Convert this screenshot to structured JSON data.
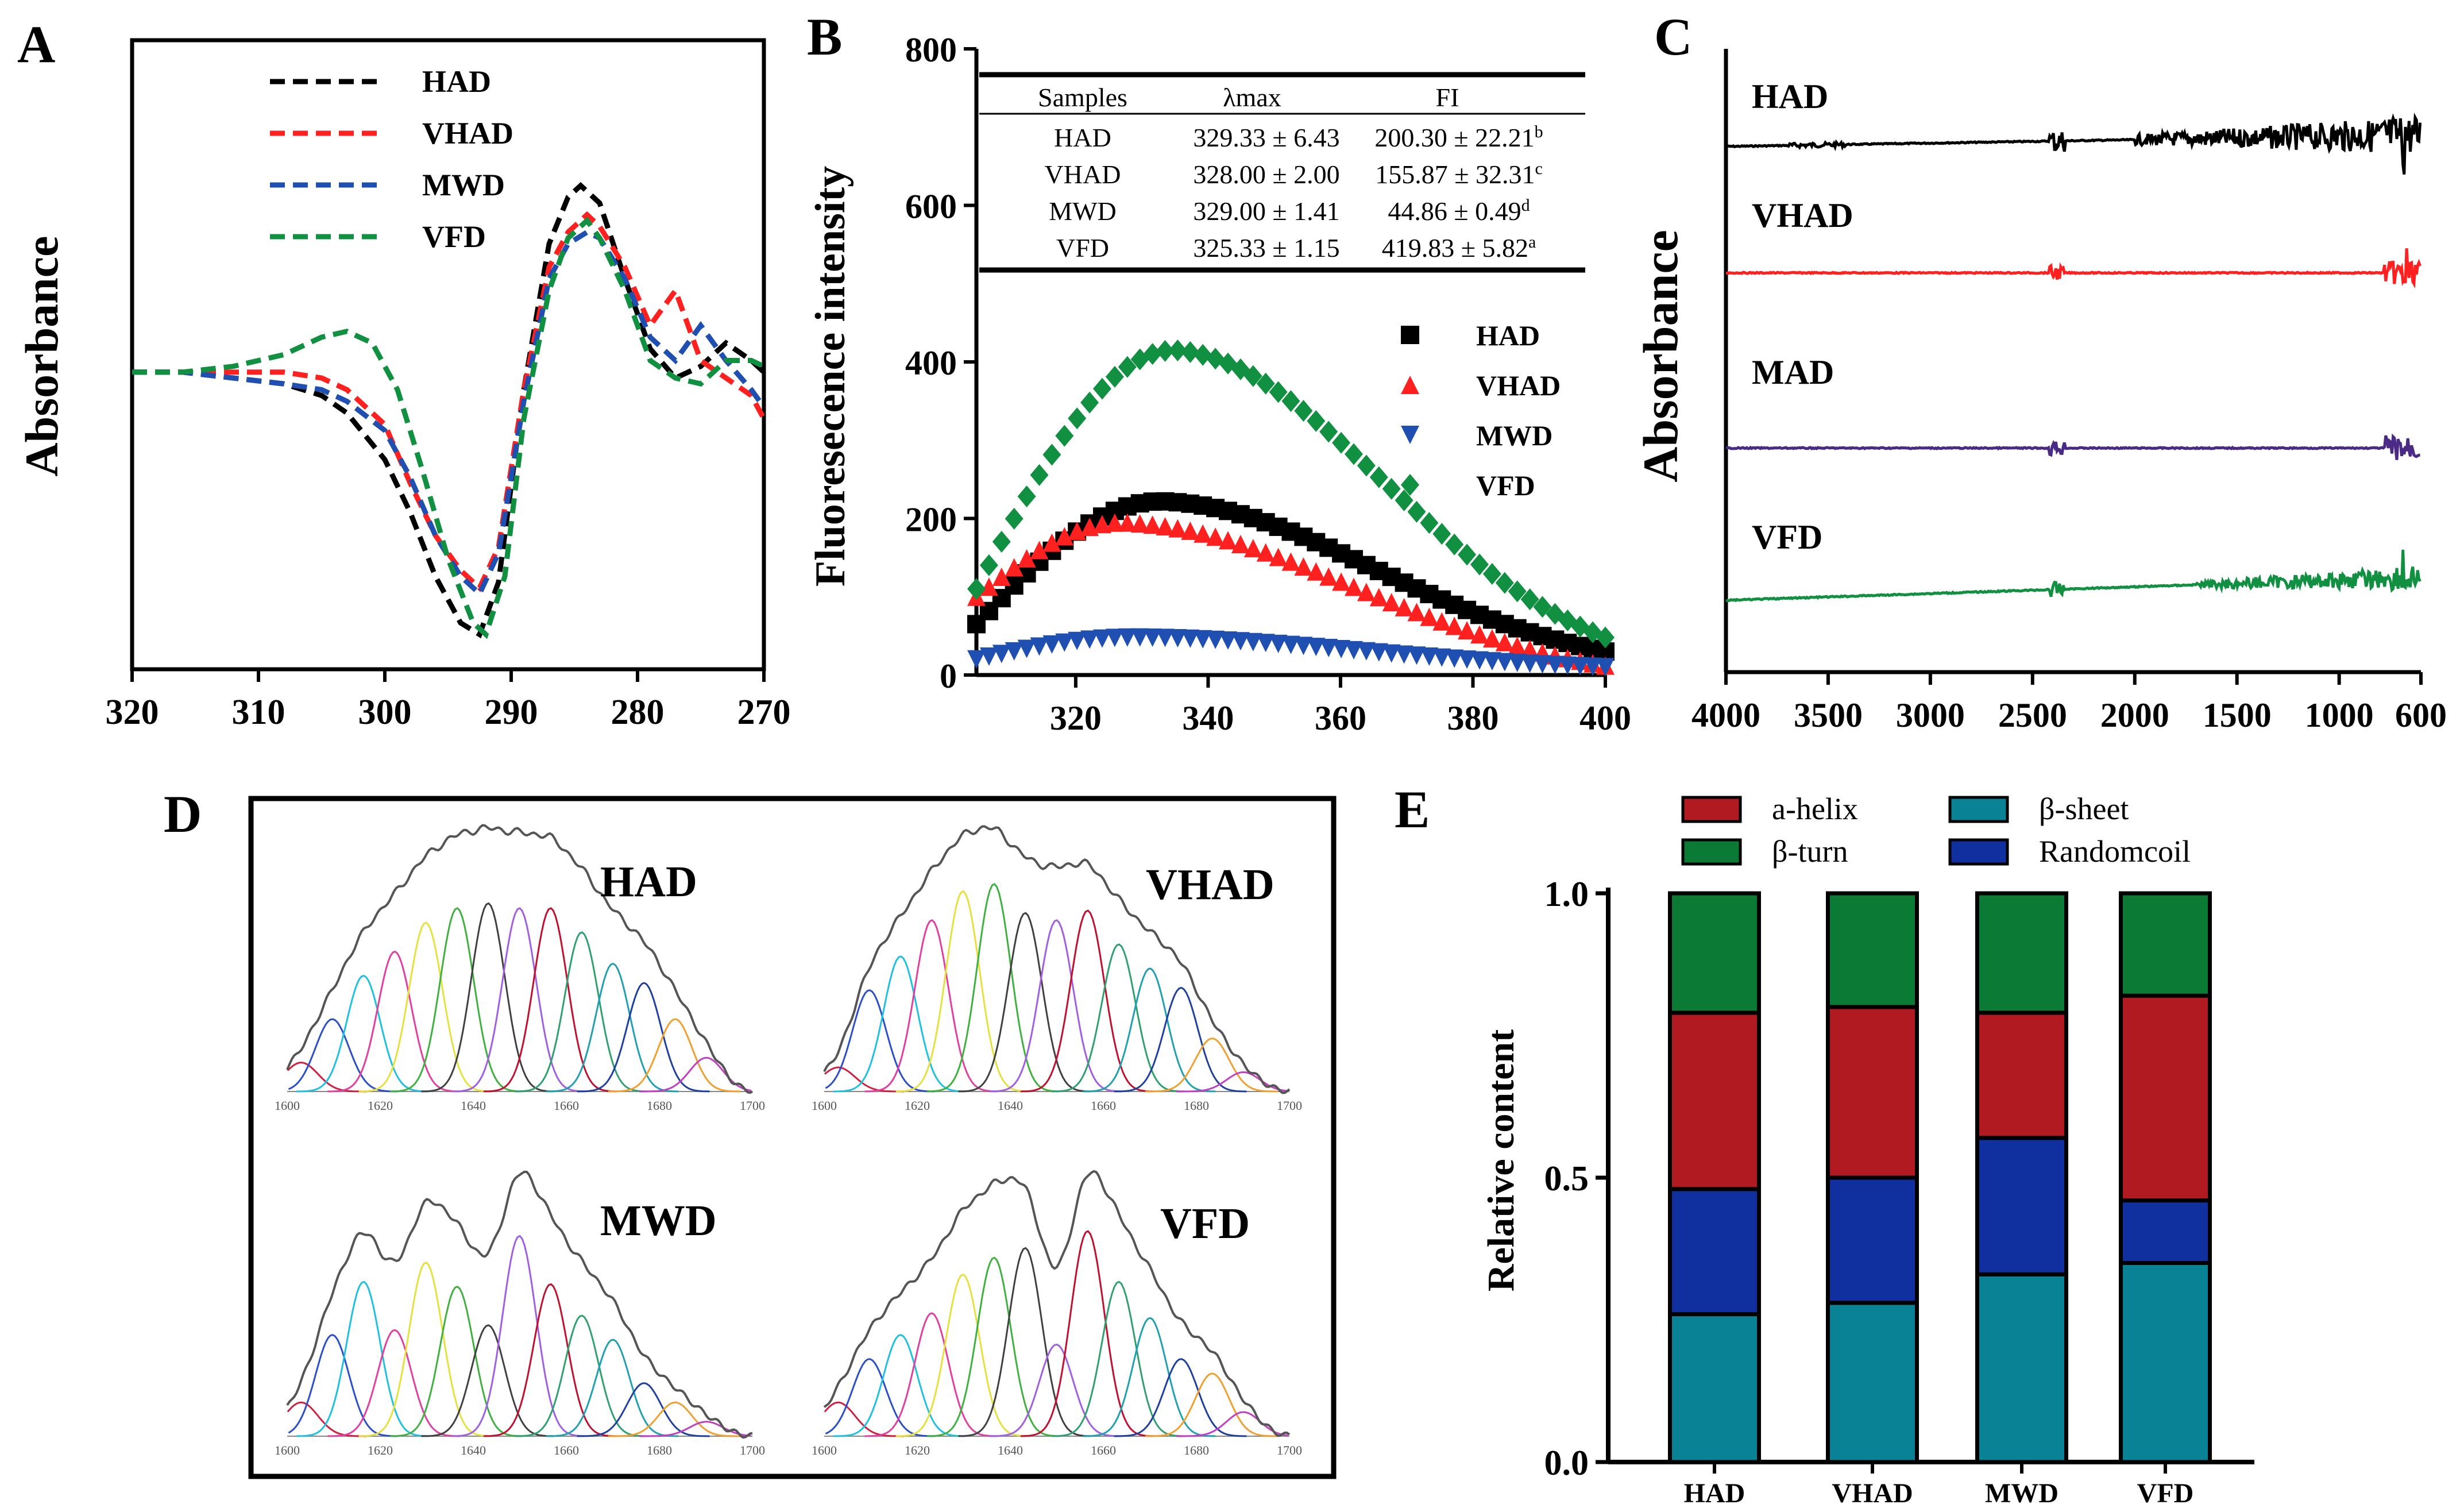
{
  "figure": {
    "panel_labels": [
      "A",
      "B",
      "C",
      "D",
      "E"
    ]
  },
  "colors": {
    "HAD": "#000000",
    "VHAD": "#ff2020",
    "MWD": "#1f4fb0",
    "VFD": "#109040",
    "MAD_ftir": "#4b2a86",
    "alpha_helix": "#b01a20",
    "beta_turn": "#0a7a34",
    "beta_sheet": "#0a8296",
    "random_coil": "#1030a0"
  },
  "chart_data": [
    {
      "panel": "A",
      "type": "line",
      "ylabel": "Absorbance",
      "xlabel": "",
      "x_ticks": [
        "320",
        "310",
        "300",
        "290",
        "280",
        "270"
      ],
      "xlim": [
        320,
        270
      ],
      "ylim": [
        0,
        1
      ],
      "legend": [
        "HAD",
        "VHAD",
        "MWD",
        "VFD"
      ],
      "legend_position": "top-left",
      "series": [
        {
          "name": "HAD",
          "x": [
            320,
            316,
            312,
            308,
            305,
            303,
            300,
            298,
            296,
            294,
            292.5,
            291,
            289,
            287,
            285.5,
            284.5,
            283,
            281,
            279,
            277,
            275,
            273,
            271,
            270
          ],
          "y": [
            0.48,
            0.48,
            0.47,
            0.46,
            0.44,
            0.41,
            0.33,
            0.24,
            0.13,
            0.05,
            0.03,
            0.12,
            0.45,
            0.7,
            0.78,
            0.8,
            0.77,
            0.64,
            0.52,
            0.47,
            0.49,
            0.53,
            0.5,
            0.48
          ]
        },
        {
          "name": "VHAD",
          "x": [
            320,
            316,
            312,
            308,
            305,
            303,
            300,
            298,
            296,
            294,
            292.5,
            291,
            289,
            287,
            285.5,
            284,
            283,
            281,
            279,
            277,
            275,
            273,
            271,
            270
          ],
          "y": [
            0.48,
            0.48,
            0.48,
            0.48,
            0.47,
            0.45,
            0.39,
            0.29,
            0.2,
            0.14,
            0.11,
            0.18,
            0.45,
            0.66,
            0.72,
            0.75,
            0.73,
            0.66,
            0.56,
            0.62,
            0.5,
            0.47,
            0.44,
            0.4
          ]
        },
        {
          "name": "MWD",
          "x": [
            320,
            316,
            312,
            308,
            305,
            303,
            300,
            298,
            296,
            294,
            292.5,
            291,
            289,
            287,
            285.5,
            284,
            283,
            281,
            279,
            277,
            275,
            273,
            271,
            270
          ],
          "y": [
            0.48,
            0.48,
            0.47,
            0.46,
            0.45,
            0.43,
            0.38,
            0.3,
            0.2,
            0.13,
            0.1,
            0.17,
            0.43,
            0.64,
            0.7,
            0.72,
            0.71,
            0.64,
            0.54,
            0.5,
            0.56,
            0.5,
            0.45,
            0.42
          ]
        },
        {
          "name": "VFD",
          "x": [
            320,
            316,
            312,
            308,
            305,
            303,
            301,
            299,
            297,
            295,
            293,
            292,
            290.5,
            289,
            287,
            285.5,
            284,
            283,
            281,
            279,
            277,
            275,
            273,
            271,
            270
          ],
          "y": [
            0.48,
            0.48,
            0.49,
            0.51,
            0.54,
            0.55,
            0.53,
            0.45,
            0.31,
            0.16,
            0.05,
            0.03,
            0.13,
            0.4,
            0.62,
            0.71,
            0.74,
            0.71,
            0.62,
            0.5,
            0.47,
            0.46,
            0.5,
            0.5,
            0.49
          ]
        }
      ]
    },
    {
      "panel": "B",
      "type": "scatter",
      "ylabel": "Fluoresecence intensity",
      "xlabel": "",
      "xlim": [
        305,
        400
      ],
      "ylim": [
        0,
        800
      ],
      "x_ticks": [
        320,
        340,
        360,
        380,
        400
      ],
      "y_ticks": [
        0,
        200,
        400,
        600,
        800
      ],
      "legend": [
        "HAD",
        "VHAD",
        "MWD",
        "VFD"
      ],
      "legend_position": "middle-right",
      "series": [
        {
          "name": "HAD",
          "marker": "square",
          "peak_x": 333,
          "peak": 222,
          "start": 65,
          "end": 30
        },
        {
          "name": "VHAD",
          "marker": "triangle-up",
          "peak_x": 327,
          "peak": 195,
          "start": 100,
          "end": 12
        },
        {
          "name": "MWD",
          "marker": "triangle-down",
          "peak_x": 329,
          "peak": 48,
          "start": 20,
          "end": 10
        },
        {
          "name": "VFD",
          "marker": "diamond",
          "peak_x": 335,
          "peak": 415,
          "start": 110,
          "end": 48
        }
      ],
      "table": {
        "headers": [
          "Samples",
          "λmax",
          "FI"
        ],
        "rows": [
          [
            "HAD",
            "329.33 ± 6.43",
            "200.30 ± 22.21",
            "b"
          ],
          [
            "VHAD",
            "328.00 ± 2.00",
            "155.87 ± 32.31",
            "c"
          ],
          [
            "MWD",
            "329.00 ± 1.41",
            "44.86 ± 0.49",
            "d"
          ],
          [
            "VFD",
            "325.33 ± 1.15",
            "419.83 ± 5.82",
            "a"
          ]
        ]
      }
    },
    {
      "panel": "C",
      "type": "line",
      "ylabel": "Absorbance",
      "xlabel": "",
      "xlim": [
        4000,
        600
      ],
      "x_ticks": [
        "4000",
        "3500",
        "3000",
        "2500",
        "2000",
        "1500",
        "1000",
        "600"
      ],
      "series_labels": [
        "HAD",
        "VHAD",
        "MAD",
        "VFD"
      ],
      "series": [
        {
          "name": "HAD",
          "color_key": "HAD"
        },
        {
          "name": "VHAD",
          "color_key": "VHAD"
        },
        {
          "name": "MAD",
          "color_key": "MAD_ftir"
        },
        {
          "name": "VFD",
          "color_key": "VFD"
        }
      ]
    },
    {
      "panel": "D",
      "type": "line",
      "subpanels": [
        {
          "name": "HAD",
          "x_ticks": [
            "1600",
            "1620",
            "1640",
            "1660",
            "1680",
            "1700"
          ]
        },
        {
          "name": "VHAD",
          "x_ticks": [
            "1600",
            "1620",
            "1640",
            "1660",
            "1680",
            "1700"
          ]
        },
        {
          "name": "MWD",
          "x_ticks": [
            "1600",
            "1620",
            "1640",
            "1660",
            "1680",
            "1700"
          ]
        },
        {
          "name": "VFD",
          "x_ticks": [
            "1600",
            "1620",
            "1640",
            "1660",
            "1680",
            "1700"
          ]
        }
      ],
      "fit_peaks": [
        1605,
        1612,
        1619,
        1626,
        1633,
        1640,
        1647,
        1654,
        1661,
        1668,
        1675,
        1682,
        1689
      ]
    },
    {
      "panel": "E",
      "type": "bar",
      "stacked": true,
      "ylabel": "Relative content",
      "categories": [
        "HAD",
        "VHAD",
        "MWD",
        "VFD"
      ],
      "ylim": [
        0,
        1.0
      ],
      "y_ticks": [
        "0.0",
        "0.5",
        "1.0"
      ],
      "legend": [
        "a-helix",
        "β-sheet",
        "β-turn",
        "Randomcoil"
      ],
      "series": [
        {
          "name": "β-sheet",
          "color_key": "beta_sheet",
          "values": [
            0.26,
            0.28,
            0.33,
            0.35
          ]
        },
        {
          "name": "Randomcoil",
          "color_key": "random_coil",
          "values": [
            0.22,
            0.22,
            0.24,
            0.11
          ]
        },
        {
          "name": "a-helix",
          "color_key": "alpha_helix",
          "values": [
            0.31,
            0.3,
            0.22,
            0.36
          ]
        },
        {
          "name": "β-turn",
          "color_key": "beta_turn",
          "values": [
            0.21,
            0.2,
            0.21,
            0.18
          ]
        }
      ]
    }
  ]
}
